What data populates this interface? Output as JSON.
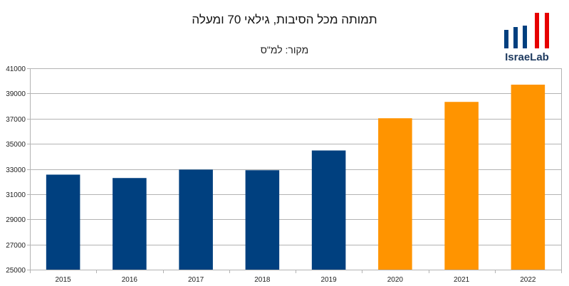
{
  "title": "תמותה מכל הסיבות, גילאי 70 ומעלה",
  "subtitle": "מקור: למ\"ס",
  "logo": {
    "text": "IsraeLab",
    "colors": [
      "#003f7f",
      "#e60000"
    ]
  },
  "chart_data": {
    "type": "bar",
    "categories": [
      "2015",
      "2016",
      "2017",
      "2018",
      "2019",
      "2020",
      "2021",
      "2022"
    ],
    "values": [
      32550,
      32280,
      32950,
      32900,
      34470,
      37030,
      38330,
      39700
    ],
    "colors": [
      "#00407f",
      "#00407f",
      "#00407f",
      "#00407f",
      "#00407f",
      "#ff9400",
      "#ff9400",
      "#ff9400"
    ],
    "yticks": [
      "25000",
      "27000",
      "29000",
      "31000",
      "33000",
      "35000",
      "37000",
      "39000",
      "41000"
    ],
    "ylim": [
      25000,
      41000
    ],
    "grid": true,
    "xlabel": "",
    "ylabel": ""
  }
}
